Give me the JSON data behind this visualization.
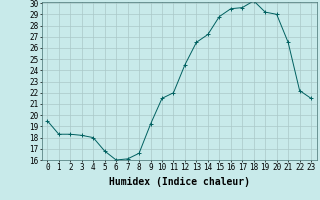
{
  "x": [
    0,
    1,
    2,
    3,
    4,
    5,
    6,
    7,
    8,
    9,
    10,
    11,
    12,
    13,
    14,
    15,
    16,
    17,
    18,
    19,
    20,
    21,
    22,
    23
  ],
  "y": [
    19.5,
    18.3,
    18.3,
    18.2,
    18.0,
    16.8,
    16.0,
    16.1,
    16.6,
    19.2,
    21.5,
    22.0,
    24.5,
    26.5,
    27.2,
    28.8,
    29.5,
    29.6,
    30.2,
    29.2,
    29.0,
    26.5,
    22.2,
    21.5
  ],
  "xlim": [
    -0.5,
    23.5
  ],
  "ylim": [
    16,
    30
  ],
  "yticks": [
    16,
    17,
    18,
    19,
    20,
    21,
    22,
    23,
    24,
    25,
    26,
    27,
    28,
    29,
    30
  ],
  "xticks": [
    0,
    1,
    2,
    3,
    4,
    5,
    6,
    7,
    8,
    9,
    10,
    11,
    12,
    13,
    14,
    15,
    16,
    17,
    18,
    19,
    20,
    21,
    22,
    23
  ],
  "xlabel": "Humidex (Indice chaleur)",
  "line_color": "#006060",
  "marker": "+",
  "bg_color": "#c8eaea",
  "grid_color": "#aac8c8",
  "xlabel_fontsize": 7,
  "tick_fontsize": 5.5
}
